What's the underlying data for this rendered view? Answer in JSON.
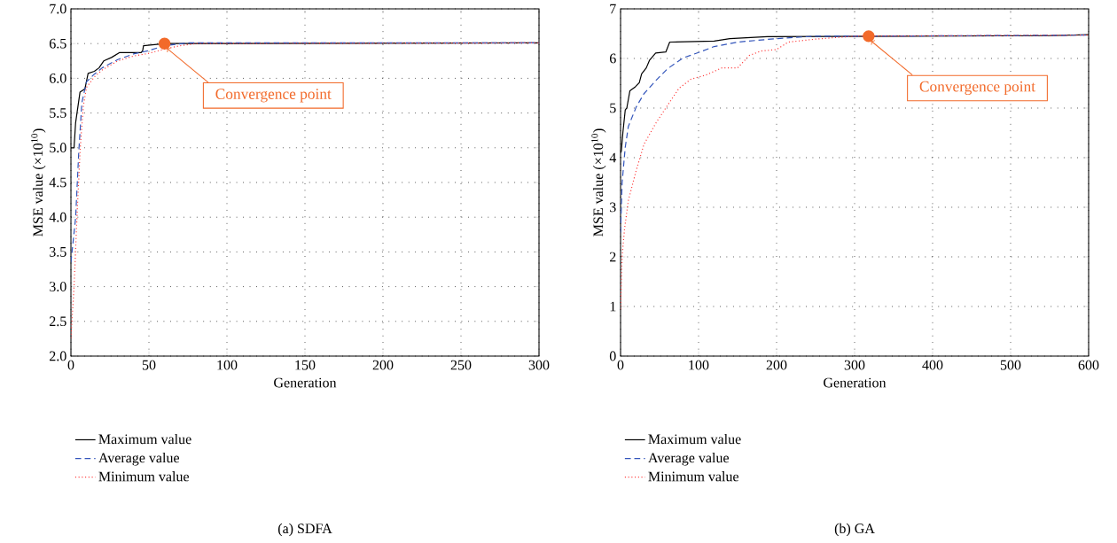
{
  "chart_data": [
    {
      "type": "line",
      "title": "(a)  SDFA",
      "xlabel": "Generation",
      "ylabel": "MSE value (×10$^{10}$)",
      "xlim": [
        0,
        300
      ],
      "ylim": [
        2,
        7
      ],
      "xticks": [
        0,
        50,
        100,
        150,
        200,
        250,
        300
      ],
      "yticks": [
        {
          "value": 2,
          "label": "2.0"
        },
        {
          "value": 2.5,
          "label": "2.5"
        },
        {
          "value": 3,
          "label": "3.0"
        },
        {
          "value": 3.5,
          "label": "3.5"
        },
        {
          "value": 4,
          "label": "4.0"
        },
        {
          "value": 4.5,
          "label": "4.5"
        },
        {
          "value": 5,
          "label": "5.0"
        },
        {
          "value": 5.5,
          "label": "5.5"
        },
        {
          "value": 6,
          "label": "6.0"
        },
        {
          "value": 6.5,
          "label": "6.5"
        },
        {
          "value": 7,
          "label": "7.0"
        }
      ],
      "grid": true,
      "legend": "bottom",
      "annotations": [
        {
          "text": "Convergence point",
          "x": 60,
          "y": 6.5
        }
      ],
      "series": [
        {
          "name": "Maximum value",
          "color": "#000000",
          "line_style": "solid",
          "x": [
            0,
            2,
            3,
            5.8,
            9,
            11,
            15,
            18,
            21,
            26,
            31,
            45,
            46,
            46.5,
            60.6,
            300
          ],
          "values": [
            5.0,
            5.0,
            5.36,
            5.8,
            5.85,
            6.07,
            6.1,
            6.15,
            6.25,
            6.3,
            6.37,
            6.37,
            6.4,
            6.47,
            6.5,
            6.51
          ]
        },
        {
          "name": "Average value",
          "color": "#3355bb",
          "line_style": "dashed",
          "x": [
            0,
            3,
            5,
            7,
            10,
            15,
            20,
            30,
            40,
            50,
            60,
            75,
            300
          ],
          "values": [
            3.35,
            3.99,
            4.93,
            5.65,
            5.95,
            6.06,
            6.15,
            6.27,
            6.35,
            6.4,
            6.47,
            6.51,
            6.51
          ]
        },
        {
          "name": "Minimum value",
          "color": "#ff3333",
          "line_style": "dotted",
          "x": [
            0,
            2,
            4,
            6,
            8,
            10,
            15,
            20,
            30,
            40,
            50,
            60,
            70,
            80,
            300
          ],
          "values": [
            2.26,
            3.0,
            4.07,
            5.01,
            5.61,
            5.87,
            6.02,
            6.12,
            6.25,
            6.32,
            6.36,
            6.42,
            6.47,
            6.5,
            6.51
          ]
        }
      ]
    },
    {
      "type": "line",
      "title": "(b)  GA",
      "xlabel": "Generation",
      "ylabel": "MSE value (×10$^{10}$)",
      "xlim": [
        0,
        600
      ],
      "ylim": [
        0,
        7
      ],
      "xticks": [
        0,
        100,
        200,
        300,
        400,
        500,
        600
      ],
      "yticks": [
        0,
        1,
        2,
        3,
        4,
        5,
        6,
        7
      ],
      "grid": true,
      "legend": "bottom",
      "annotations": [
        {
          "text": "Convergence point",
          "x": 318,
          "y": 6.45
        }
      ],
      "series": [
        {
          "name": "Maximum value",
          "color": "#000000",
          "line_style": "solid",
          "x": [
            0,
            1,
            3,
            6,
            8,
            12,
            19,
            24,
            27,
            33,
            37,
            45,
            58,
            63,
            120,
            140,
            188,
            550,
            600
          ],
          "values": [
            4.1,
            4.13,
            4.51,
            4.96,
            5.0,
            5.35,
            5.43,
            5.51,
            5.69,
            5.81,
            5.96,
            6.11,
            6.13,
            6.33,
            6.35,
            6.4,
            6.44,
            6.46,
            6.48
          ]
        },
        {
          "name": "Average value",
          "color": "#3355bb",
          "line_style": "dashed",
          "x": [
            0,
            2,
            6,
            10,
            20,
            30,
            45,
            60,
            80,
            100,
            120,
            150,
            200,
            250,
            320,
            600
          ],
          "values": [
            2.49,
            3.5,
            4.21,
            4.63,
            5.02,
            5.29,
            5.55,
            5.79,
            6.01,
            6.12,
            6.24,
            6.33,
            6.4,
            6.45,
            6.45,
            6.47
          ]
        },
        {
          "name": "Minimum value",
          "color": "#ff3333",
          "line_style": "dotted",
          "x": [
            0,
            2,
            5,
            10,
            20,
            30,
            45,
            60,
            75,
            90,
            110,
            130,
            150,
            165,
            180,
            200,
            215,
            250,
            300,
            600
          ],
          "values": [
            0.94,
            2.01,
            2.55,
            3.14,
            3.74,
            4.27,
            4.69,
            5.05,
            5.4,
            5.58,
            5.67,
            5.81,
            5.81,
            6.06,
            6.15,
            6.18,
            6.33,
            6.39,
            6.45,
            6.47
          ]
        }
      ]
    }
  ]
}
